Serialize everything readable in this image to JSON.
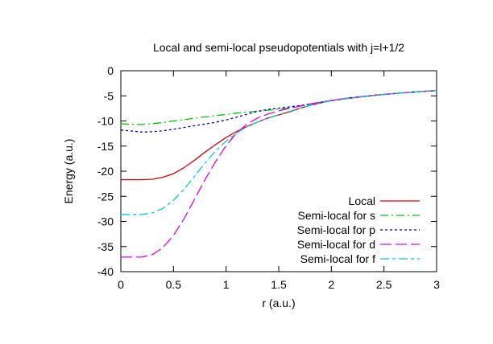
{
  "title": "Local and semi-local pseudopotentials with j=l+1/2",
  "chart_data": {
    "type": "line",
    "title": "Local and semi-local pseudopotentials with j=l+1/2",
    "xlabel": "r (a.u.)",
    "ylabel": "Energy (a.u.)",
    "xlim": [
      0,
      3
    ],
    "ylim": [
      -40,
      0
    ],
    "xticks": [
      0,
      0.5,
      1,
      1.5,
      2,
      2.5,
      3
    ],
    "yticks": [
      0,
      -5,
      -10,
      -15,
      -20,
      -25,
      -30,
      -35,
      -40
    ],
    "grid": false,
    "legend_position": "inside-bottom-right",
    "series": [
      {
        "name": "Local",
        "color": "#dd0000",
        "dash": "solid",
        "points": [
          [
            0,
            -21.7
          ],
          [
            0.1,
            -21.7
          ],
          [
            0.2,
            -21.7
          ],
          [
            0.3,
            -21.6
          ],
          [
            0.4,
            -21.2
          ],
          [
            0.5,
            -20.5
          ],
          [
            0.6,
            -19.3
          ],
          [
            0.7,
            -17.8
          ],
          [
            0.8,
            -16.2
          ],
          [
            0.9,
            -14.7
          ],
          [
            1,
            -13.3
          ],
          [
            1.1,
            -12.1
          ],
          [
            1.2,
            -11.1
          ],
          [
            1.3,
            -10.2
          ],
          [
            1.4,
            -9.4
          ],
          [
            1.5,
            -8.8
          ],
          [
            1.6,
            -8.2
          ],
          [
            1.7,
            -7.5
          ],
          [
            1.8,
            -6.9
          ],
          [
            1.9,
            -6.4
          ],
          [
            2,
            -5.95
          ],
          [
            2.2,
            -5.4
          ],
          [
            2.4,
            -4.95
          ],
          [
            2.6,
            -4.55
          ],
          [
            2.8,
            -4.2
          ],
          [
            3,
            -3.95
          ]
        ]
      },
      {
        "name": "Semi-local for s",
        "color": "#00c400",
        "dash": "10 4 2 4",
        "points": [
          [
            0,
            -10.55
          ],
          [
            0.1,
            -10.65
          ],
          [
            0.2,
            -10.7
          ],
          [
            0.3,
            -10.55
          ],
          [
            0.4,
            -10.3
          ],
          [
            0.5,
            -10
          ],
          [
            0.6,
            -9.75
          ],
          [
            0.7,
            -9.45
          ],
          [
            0.8,
            -9.2
          ],
          [
            0.9,
            -8.95
          ],
          [
            1,
            -8.7
          ],
          [
            1.1,
            -8.45
          ],
          [
            1.2,
            -8.25
          ],
          [
            1.3,
            -8.05
          ],
          [
            1.4,
            -7.85
          ],
          [
            1.5,
            -7.65
          ],
          [
            1.6,
            -7.4
          ],
          [
            1.7,
            -7.1
          ],
          [
            1.8,
            -6.65
          ],
          [
            1.9,
            -6.25
          ],
          [
            2,
            -5.9
          ],
          [
            2.2,
            -5.35
          ],
          [
            2.4,
            -4.9
          ],
          [
            2.6,
            -4.55
          ],
          [
            2.8,
            -4.2
          ],
          [
            3,
            -3.95
          ]
        ]
      },
      {
        "name": "Semi-local for p",
        "color": "#0000c4",
        "dash": "3 3",
        "points": [
          [
            0,
            -11.8
          ],
          [
            0.1,
            -12
          ],
          [
            0.2,
            -12.2
          ],
          [
            0.3,
            -12.15
          ],
          [
            0.4,
            -11.95
          ],
          [
            0.5,
            -11.65
          ],
          [
            0.6,
            -11.3
          ],
          [
            0.7,
            -10.95
          ],
          [
            0.8,
            -10.6
          ],
          [
            0.9,
            -10.25
          ],
          [
            1,
            -9.8
          ],
          [
            1.1,
            -9.25
          ],
          [
            1.2,
            -8.65
          ],
          [
            1.3,
            -8.1
          ],
          [
            1.4,
            -7.7
          ],
          [
            1.5,
            -7.45
          ],
          [
            1.6,
            -7.2
          ],
          [
            1.7,
            -6.95
          ],
          [
            1.8,
            -6.6
          ],
          [
            1.9,
            -6.25
          ],
          [
            2,
            -5.9
          ],
          [
            2.2,
            -5.35
          ],
          [
            2.4,
            -4.9
          ],
          [
            2.6,
            -4.55
          ],
          [
            2.8,
            -4.2
          ],
          [
            3,
            -3.95
          ]
        ]
      },
      {
        "name": "Semi-local for d",
        "color": "#e000e0",
        "dash": "14 5",
        "points": [
          [
            0,
            -37.1
          ],
          [
            0.1,
            -37.1
          ],
          [
            0.2,
            -37.1
          ],
          [
            0.3,
            -36.6
          ],
          [
            0.4,
            -35.2
          ],
          [
            0.5,
            -32.8
          ],
          [
            0.6,
            -29.5
          ],
          [
            0.7,
            -25.6
          ],
          [
            0.8,
            -21.7
          ],
          [
            0.9,
            -18.1
          ],
          [
            1,
            -14.9
          ],
          [
            1.1,
            -12.4
          ],
          [
            1.2,
            -10.6
          ],
          [
            1.3,
            -9.4
          ],
          [
            1.4,
            -8.6
          ],
          [
            1.5,
            -8
          ],
          [
            1.6,
            -7.5
          ],
          [
            1.7,
            -7.05
          ],
          [
            1.8,
            -6.6
          ],
          [
            1.9,
            -6.25
          ],
          [
            2,
            -5.9
          ],
          [
            2.2,
            -5.35
          ],
          [
            2.4,
            -4.9
          ],
          [
            2.6,
            -4.55
          ],
          [
            2.8,
            -4.2
          ],
          [
            3,
            -3.93
          ]
        ]
      },
      {
        "name": "Semi-local for f",
        "color": "#00cdcd",
        "dash": "11 4 4 4",
        "points": [
          [
            0,
            -28.6
          ],
          [
            0.1,
            -28.6
          ],
          [
            0.2,
            -28.6
          ],
          [
            0.3,
            -28.3
          ],
          [
            0.4,
            -27.4
          ],
          [
            0.5,
            -25.8
          ],
          [
            0.6,
            -23.6
          ],
          [
            0.7,
            -21
          ],
          [
            0.8,
            -18.4
          ],
          [
            0.9,
            -16
          ],
          [
            1,
            -14
          ],
          [
            1.1,
            -12.4
          ],
          [
            1.2,
            -11.1
          ],
          [
            1.3,
            -10.2
          ],
          [
            1.4,
            -9.4
          ],
          [
            1.5,
            -8.75
          ],
          [
            1.6,
            -8.1
          ],
          [
            1.7,
            -7.5
          ],
          [
            1.8,
            -6.9
          ],
          [
            1.9,
            -6.4
          ],
          [
            2,
            -5.95
          ],
          [
            2.2,
            -5.4
          ],
          [
            2.4,
            -4.95
          ],
          [
            2.6,
            -4.55
          ],
          [
            2.8,
            -4.2
          ],
          [
            3,
            -3.95
          ]
        ]
      }
    ],
    "legend": {
      "entries": [
        "Local",
        "Semi-local for s",
        "Semi-local for p",
        "Semi-local for d",
        "Semi-local for f"
      ]
    },
    "axis_color": "#000000",
    "background_color": "#ffffff"
  }
}
